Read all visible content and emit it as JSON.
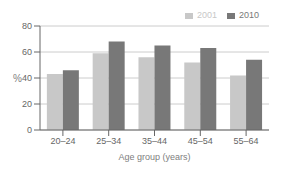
{
  "chart_data": {
    "type": "bar",
    "categories": [
      "20–24",
      "25–34",
      "35–44",
      "45–54",
      "55–64"
    ],
    "series": [
      {
        "name": "2001",
        "color": "#c8c8c8",
        "values": [
          43,
          59,
          56,
          52,
          42
        ]
      },
      {
        "name": "2010",
        "color": "#787878",
        "values": [
          46,
          68,
          65,
          63,
          54
        ]
      }
    ],
    "xlabel": "Age group (years)",
    "ylabel": "%",
    "ylim": [
      0,
      80
    ],
    "yticks": [
      0,
      20,
      40,
      60,
      80
    ],
    "grid": true,
    "legend": "upper right"
  }
}
